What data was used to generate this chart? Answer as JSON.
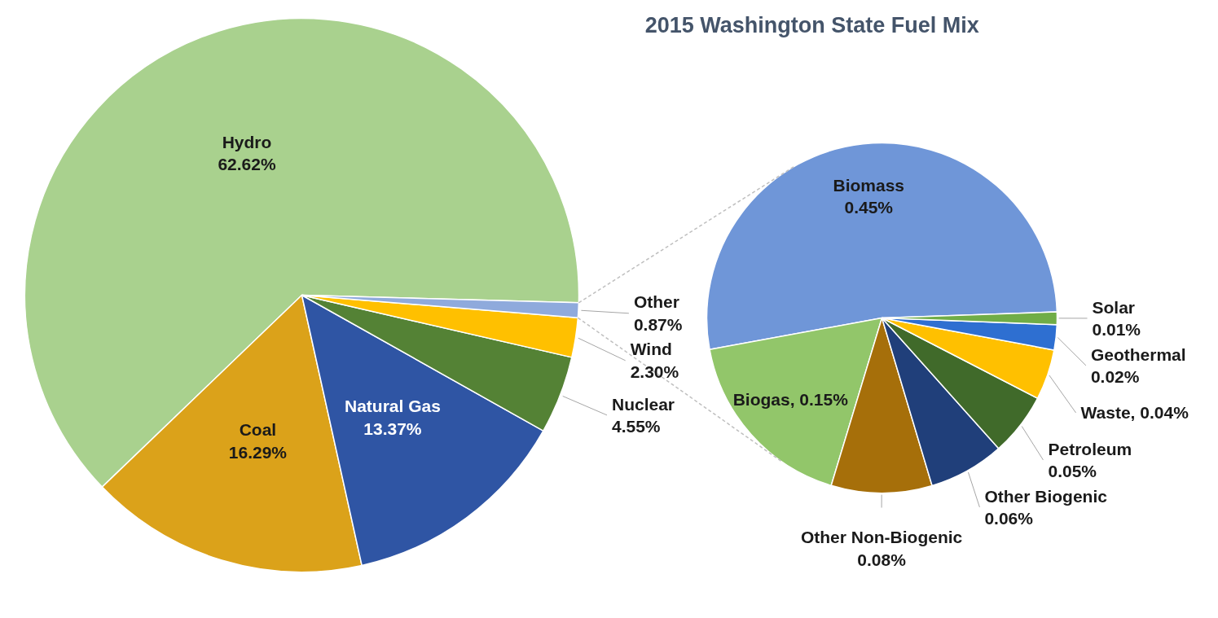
{
  "chart_data": [
    {
      "type": "pie",
      "title": "2015 Washington  State Fuel Mix",
      "categories": [
        "Hydro",
        "Coal",
        "Natural Gas",
        "Nuclear",
        "Wind",
        "Other"
      ],
      "values": [
        62.62,
        16.29,
        13.37,
        4.55,
        2.3,
        0.87
      ],
      "value_labels": [
        "62.62%",
        "16.29%",
        "13.37%",
        "4.55%",
        "2.30%",
        "0.87%"
      ],
      "colors": [
        "#a9d18e",
        "#dba21a",
        "#2f55a4",
        "#548235",
        "#ffc000",
        "#8faadc"
      ]
    },
    {
      "type": "pie",
      "categories": [
        "Biomass",
        "Biogas",
        "Other Non-Biogenic",
        "Other Biogenic",
        "Petroleum",
        "Waste",
        "Geothermal",
        "Solar"
      ],
      "values": [
        0.45,
        0.15,
        0.08,
        0.06,
        0.05,
        0.04,
        0.02,
        0.01
      ],
      "value_labels": [
        "0.45%",
        "0.15%",
        "0.08%",
        "0.06%",
        "0.05%",
        "0.04%",
        "0.02%",
        "0.01%"
      ],
      "colors": [
        "#6f96d8",
        "#92c66a",
        "#a66f0a",
        "#203f7a",
        "#406a2a",
        "#ffc000",
        "#2e6fd1",
        "#70ad47"
      ]
    }
  ]
}
